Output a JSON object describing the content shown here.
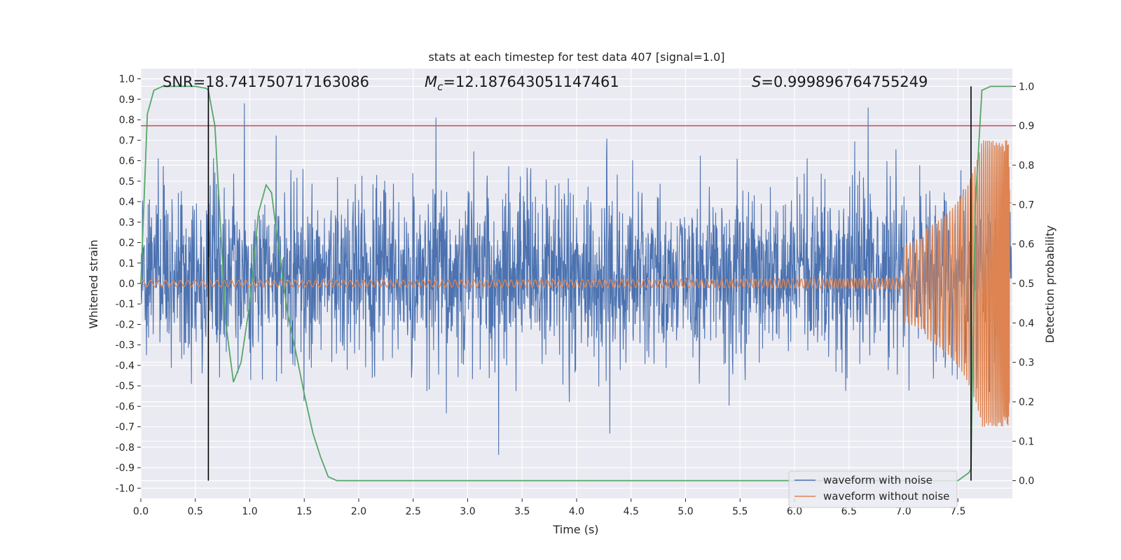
{
  "chart_data": {
    "type": "line",
    "title": "stats at each timestep for test data 407 [signal=1.0]",
    "xlabel": "Time (s)",
    "ylabel_left": "Whitened strain",
    "ylabel_right": "Detection probability",
    "xlim": [
      0.0,
      8.0
    ],
    "ylim_left": [
      -1.05,
      1.05
    ],
    "ylim_right": [
      -0.045,
      1.045
    ],
    "x_ticks": [
      "0.0",
      "0.5",
      "1.0",
      "1.5",
      "2.0",
      "2.5",
      "3.0",
      "3.5",
      "4.0",
      "4.5",
      "5.0",
      "5.5",
      "6.0",
      "6.5",
      "7.0",
      "7.5"
    ],
    "left_ticks": [
      "1.0",
      "0.9",
      "0.8",
      "0.7",
      "0.6",
      "0.5",
      "0.4",
      "0.3",
      "0.2",
      "0.1",
      "0.0",
      "-0.1",
      "-0.2",
      "-0.3",
      "-0.4",
      "-0.5",
      "-0.6",
      "-0.7",
      "-0.8",
      "-0.9",
      "-1.0"
    ],
    "right_ticks": [
      "1.0",
      "0.9",
      "0.8",
      "0.7",
      "0.6",
      "0.5",
      "0.4",
      "0.3",
      "0.2",
      "0.1",
      "0.0"
    ],
    "annotations": {
      "snr": "SNR=18.741750717163086",
      "mc_symbol": "M",
      "mc_subscript": "c",
      "mc_value": "=12.187643051147461",
      "s_symbol": "S",
      "s_value": "=0.999896764755249"
    },
    "threshold_right": 0.9,
    "vertical_lines_x": [
      0.62,
      7.62
    ],
    "series": [
      {
        "name": "waveform with noise",
        "color": "#4c72b0",
        "axis": "left",
        "description_values": {
          "typical_envelope": [
            -0.45,
            0.55
          ],
          "extremes": [
            -0.92,
            0.88
          ]
        }
      },
      {
        "name": "waveform without noise",
        "color": "#dd8452",
        "axis": "left",
        "chirp": {
          "amp_start": 0.01,
          "amp_end_approx": 0.7,
          "f_start": 9,
          "coalescence_time": 7.98
        }
      },
      {
        "name": "",
        "color": "#55a868",
        "axis": "right",
        "x": [
          0.0,
          0.06,
          0.12,
          0.2,
          0.3,
          0.4,
          0.5,
          0.6,
          0.62,
          0.68,
          0.72,
          0.78,
          0.85,
          0.92,
          1.0,
          1.08,
          1.15,
          1.2,
          1.25,
          1.3,
          1.35,
          1.42,
          1.5,
          1.58,
          1.65,
          1.72,
          1.8,
          1.9,
          2.5,
          3.5,
          4.5,
          5.5,
          6.5,
          7.0,
          7.5,
          7.6,
          7.62,
          7.66,
          7.72,
          7.8,
          7.9,
          8.0
        ],
        "y": [
          0.5,
          0.93,
          0.99,
          1.0,
          1.0,
          1.0,
          1.0,
          0.995,
          0.99,
          0.9,
          0.7,
          0.4,
          0.25,
          0.3,
          0.45,
          0.68,
          0.75,
          0.73,
          0.62,
          0.52,
          0.42,
          0.33,
          0.22,
          0.12,
          0.06,
          0.01,
          0.0,
          0.0,
          0.0,
          0.0,
          0.0,
          0.0,
          0.0,
          0.0,
          0.0,
          0.02,
          0.03,
          0.7,
          0.99,
          1.0,
          1.0,
          1.0
        ]
      },
      {
        "name": "",
        "color": "#c44e52",
        "axis": "right",
        "y_const": 0.9
      }
    ],
    "legend": {
      "placement": "lower-right",
      "entries": [
        "waveform with noise",
        "waveform without noise"
      ]
    },
    "grid": true,
    "background": "#eaeaf2"
  }
}
